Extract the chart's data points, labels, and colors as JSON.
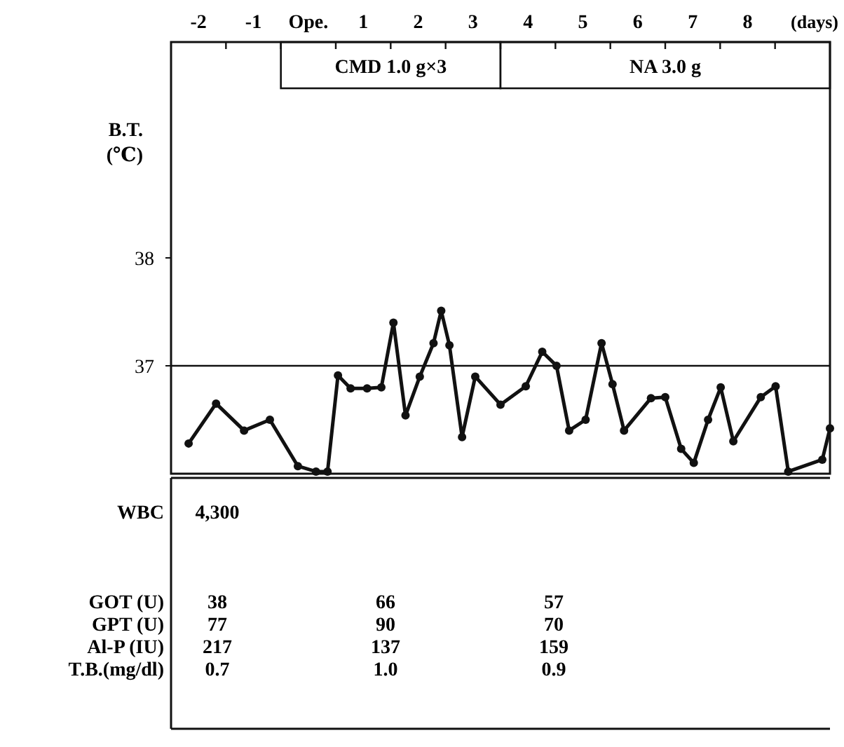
{
  "chart_data": [
    {
      "type": "line",
      "xlabel": "(days)",
      "ylabel": "B.T. (℃)",
      "xlim": [
        -2.5,
        9.5
      ],
      "ylim": [
        36,
        40
      ],
      "xticks": [
        -2,
        -1,
        {
          "value": 0,
          "label": "Ope."
        },
        1,
        2,
        3,
        4,
        5,
        6,
        7,
        8,
        {
          "value": -1.5,
          "label": null
        },
        {
          "value": -0.5,
          "label": null
        },
        {
          "value": 0.5,
          "label": null
        },
        {
          "value": 1.5,
          "label": null
        },
        {
          "value": 2.5,
          "label": null
        },
        {
          "value": 3.5,
          "label": null
        },
        {
          "value": 4.5,
          "label": null
        },
        {
          "value": 5.5,
          "label": null
        },
        {
          "value": 6.5,
          "label": null
        },
        {
          "value": 7.5,
          "label": null
        },
        {
          "value": 8.5,
          "label": null
        }
      ],
      "yticks": [
        37,
        38
      ],
      "grid": false,
      "marker": "circle",
      "line_style": "solid",
      "ref_lines": [
        {
          "axis": "y",
          "value": 37
        }
      ],
      "bands": [
        {
          "axis": "x",
          "from": -0.5,
          "to": 3.5,
          "label": "CMD 1.0 g×3",
          "color": "#ffffff"
        },
        {
          "axis": "x",
          "from": 3.5,
          "to": 9.5,
          "label": "NA 3.0 g",
          "color": "#ffffff"
        }
      ],
      "series": [
        {
          "color": "#111111",
          "x": [
            -2.18,
            -1.68,
            -1.17,
            -0.7,
            -0.19,
            0.14,
            0.35,
            0.54,
            0.77,
            1.07,
            1.33,
            1.55,
            1.77,
            2.03,
            2.28,
            2.42,
            2.57,
            2.8,
            3.04,
            3.5,
            3.96,
            4.26,
            4.52,
            4.75,
            5.05,
            5.34,
            5.54,
            5.75,
            6.24,
            6.5,
            6.79,
            7.02,
            7.28,
            7.51,
            7.74,
            8.24,
            8.51,
            8.74,
            9.36,
            9.5
          ],
          "values": [
            36.28,
            36.65,
            36.4,
            36.5,
            36.07,
            36.02,
            36.02,
            36.91,
            36.79,
            36.79,
            36.8,
            37.4,
            36.54,
            36.9,
            37.21,
            37.51,
            37.19,
            36.34,
            36.9,
            36.64,
            36.81,
            37.13,
            37.0,
            36.4,
            36.5,
            37.21,
            36.83,
            36.4,
            36.7,
            36.71,
            36.23,
            36.1,
            36.5,
            36.8,
            36.3,
            36.71,
            36.81,
            36.02,
            36.13,
            36.42
          ]
        }
      ]
    },
    {
      "type": "other",
      "categories": [
        null,
        null,
        null
      ],
      "y_categories": [
        "WBC",
        "GOT (U)",
        "GPT (U)",
        "Al-P (IU)",
        "T.B.(mg/dl)"
      ],
      "cell_labels": [
        [
          "4,300",
          null,
          null
        ],
        [
          "38",
          "66",
          "57"
        ],
        [
          "77",
          "90",
          "70"
        ],
        [
          "217",
          "137",
          "159"
        ],
        [
          "0.7",
          "1.0",
          "0.9"
        ]
      ]
    }
  ]
}
